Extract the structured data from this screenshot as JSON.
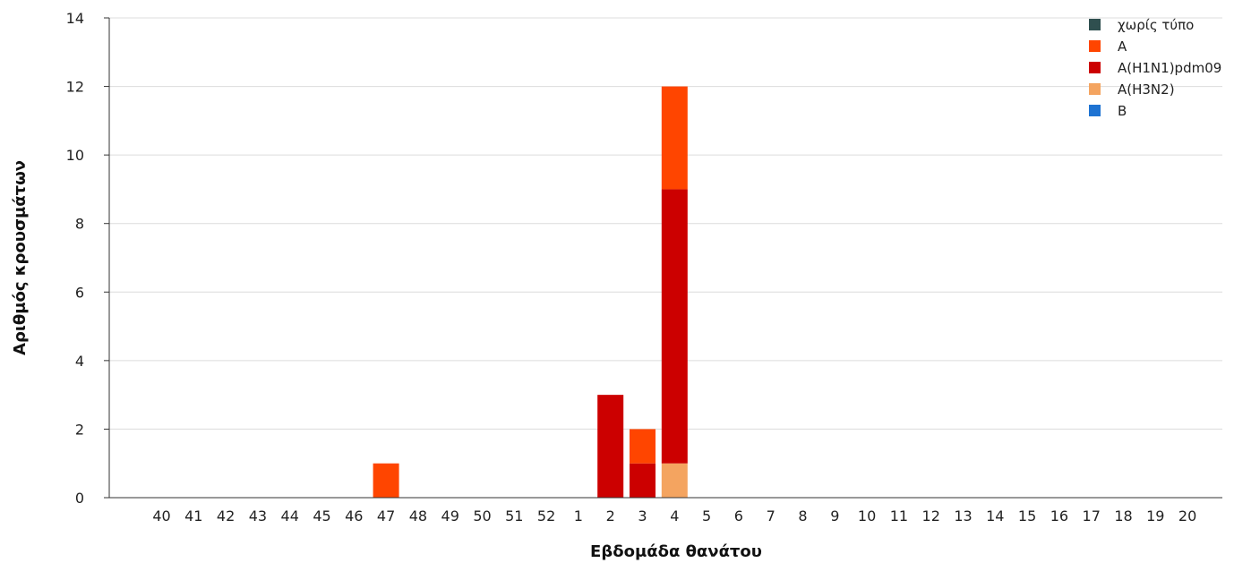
{
  "chart_data": {
    "type": "bar",
    "stacked": true,
    "xlabel": "Εβδομάδα θανάτου",
    "ylabel": "Αριθμός κρουσμάτων",
    "ylim": [
      0,
      14
    ],
    "yticks": [
      0,
      2,
      4,
      6,
      8,
      10,
      12,
      14
    ],
    "grid": true,
    "legend_position": "top-right",
    "categories": [
      "40",
      "41",
      "42",
      "43",
      "44",
      "45",
      "46",
      "47",
      "48",
      "49",
      "50",
      "51",
      "52",
      "1",
      "2",
      "3",
      "4",
      "5",
      "6",
      "7",
      "8",
      "9",
      "10",
      "11",
      "12",
      "13",
      "14",
      "15",
      "16",
      "17",
      "18",
      "19",
      "20"
    ],
    "series": [
      {
        "name": "χωρίς τύπο",
        "color": "#2f4f4f",
        "values": [
          0,
          0,
          0,
          0,
          0,
          0,
          0,
          0,
          0,
          0,
          0,
          0,
          0,
          0,
          0,
          0,
          0,
          0,
          0,
          0,
          0,
          0,
          0,
          0,
          0,
          0,
          0,
          0,
          0,
          0,
          0,
          0,
          0
        ]
      },
      {
        "name": "A",
        "color": "#ff4500",
        "values": [
          0,
          0,
          0,
          0,
          0,
          0,
          0,
          1,
          0,
          0,
          0,
          0,
          0,
          0,
          0,
          1,
          3,
          0,
          0,
          0,
          0,
          0,
          0,
          0,
          0,
          0,
          0,
          0,
          0,
          0,
          0,
          0,
          0
        ]
      },
      {
        "name": "A(H1N1)pdm09",
        "color": "#cc0000",
        "values": [
          0,
          0,
          0,
          0,
          0,
          0,
          0,
          0,
          0,
          0,
          0,
          0,
          0,
          0,
          3,
          1,
          8,
          0,
          0,
          0,
          0,
          0,
          0,
          0,
          0,
          0,
          0,
          0,
          0,
          0,
          0,
          0,
          0
        ]
      },
      {
        "name": "A(H3N2)",
        "color": "#f4a460",
        "values": [
          0,
          0,
          0,
          0,
          0,
          0,
          0,
          0,
          0,
          0,
          0,
          0,
          0,
          0,
          0,
          0,
          1,
          0,
          0,
          0,
          0,
          0,
          0,
          0,
          0,
          0,
          0,
          0,
          0,
          0,
          0,
          0,
          0
        ]
      },
      {
        "name": "B",
        "color": "#1e73d2",
        "values": [
          0,
          0,
          0,
          0,
          0,
          0,
          0,
          0,
          0,
          0,
          0,
          0,
          0,
          0,
          0,
          0,
          0,
          0,
          0,
          0,
          0,
          0,
          0,
          0,
          0,
          0,
          0,
          0,
          0,
          0,
          0,
          0,
          0
        ]
      }
    ],
    "stack_order": [
      "A(H3N2)",
      "A(H1N1)pdm09",
      "A",
      "χωρίς τύπο",
      "B"
    ]
  }
}
